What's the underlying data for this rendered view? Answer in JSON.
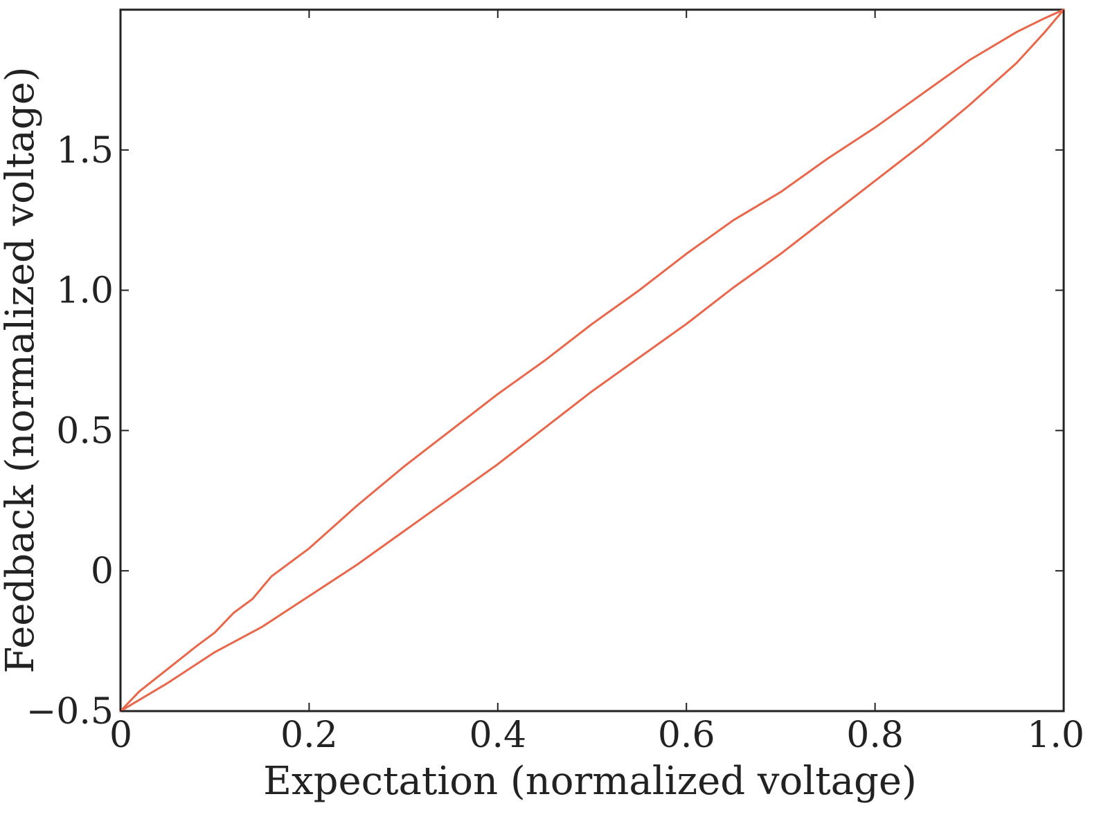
{
  "chart_data": {
    "type": "line",
    "title": "",
    "xlabel": "Expectation  (normalized voltage)",
    "ylabel": "Feedback (normalized voltage)",
    "xlim": [
      0,
      1.0
    ],
    "ylim": [
      -0.5,
      2.0
    ],
    "x_ticks": [
      0,
      0.2,
      0.4,
      0.6,
      0.8,
      1.0
    ],
    "x_tick_labels": [
      "0",
      "0.2",
      "0.4",
      "0.6",
      "0.8",
      "1.0"
    ],
    "y_ticks": [
      -0.5,
      0,
      0.5,
      1.0,
      1.5
    ],
    "y_tick_labels": [
      "−0.5",
      "0",
      "0.5",
      "1.0",
      "1.5"
    ],
    "grid": false,
    "line_color": "#e8674a",
    "series": [
      {
        "x": [
          0,
          0.02,
          0.05,
          0.08,
          0.1,
          0.12,
          0.14,
          0.16,
          0.2,
          0.25,
          0.3,
          0.35,
          0.4,
          0.45,
          0.5,
          0.55,
          0.6,
          0.65,
          0.7,
          0.75,
          0.8,
          0.85,
          0.9,
          0.95,
          0.98,
          1.0
        ],
        "y": [
          -0.5,
          -0.43,
          -0.35,
          -0.27,
          -0.22,
          -0.15,
          -0.1,
          -0.02,
          0.08,
          0.23,
          0.37,
          0.5,
          0.63,
          0.75,
          0.88,
          1.0,
          1.13,
          1.25,
          1.35,
          1.47,
          1.58,
          1.7,
          1.82,
          1.92,
          1.97,
          2.0
        ]
      },
      {
        "x": [
          0,
          0.05,
          0.1,
          0.15,
          0.2,
          0.25,
          0.3,
          0.35,
          0.4,
          0.45,
          0.5,
          0.55,
          0.6,
          0.65,
          0.7,
          0.75,
          0.8,
          0.85,
          0.9,
          0.95,
          0.98,
          1.0
        ],
        "y": [
          -0.5,
          -0.4,
          -0.29,
          -0.2,
          -0.09,
          0.02,
          0.14,
          0.26,
          0.38,
          0.51,
          0.64,
          0.76,
          0.88,
          1.01,
          1.13,
          1.26,
          1.39,
          1.52,
          1.66,
          1.81,
          1.92,
          2.0
        ]
      }
    ]
  }
}
